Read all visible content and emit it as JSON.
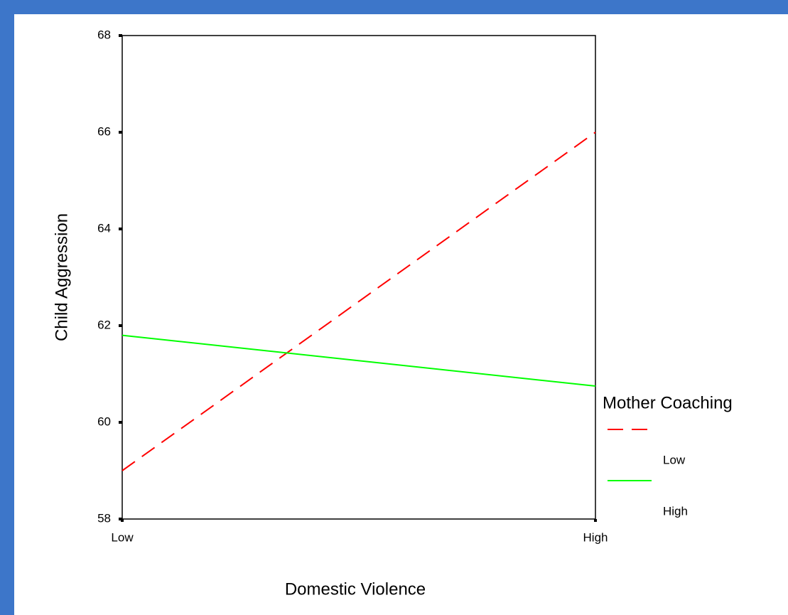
{
  "chart_data": {
    "type": "line",
    "x_label": "Domestic Violence",
    "y_label": "Child Aggression",
    "legend_title": "Mother Coaching",
    "categories": [
      "Low",
      "High"
    ],
    "series": [
      {
        "name": "Low",
        "color": "#ff0000",
        "line_style": "dashed",
        "values": [
          59.0,
          66.0
        ]
      },
      {
        "name": "High",
        "color": "#00ff00",
        "line_style": "solid",
        "values": [
          61.8,
          60.75
        ]
      }
    ],
    "ylim": [
      58,
      68
    ],
    "yticks": [
      58,
      60,
      62,
      64,
      66,
      68
    ],
    "legend": "right"
  }
}
